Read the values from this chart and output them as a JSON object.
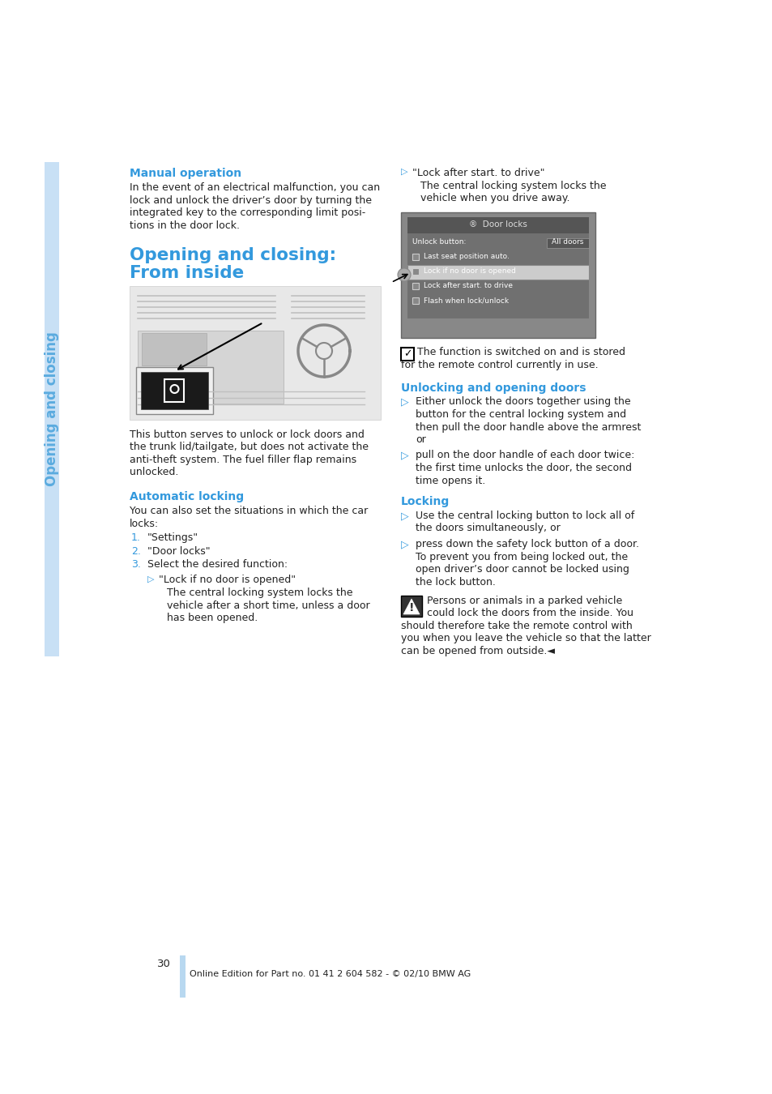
{
  "bg_color": "#ffffff",
  "sidebar_color": "#c8e0f5",
  "sidebar_text": "Opening and closing",
  "sidebar_text_color": "#5aabdf",
  "page_number": "30",
  "footer_text": "Online Edition for Part no. 01 41 2 604 582 - © 02/10 BMW AG",
  "footer_bar_color": "#b8d8f0",
  "blue_heading_color": "#3399dd",
  "black_text_color": "#222222",
  "section1_heading": "Manual operation",
  "section1_body_lines": [
    "In the event of an electrical malfunction, you can",
    "lock and unlock the driver’s door by turning the",
    "integrated key to the corresponding limit posi-",
    "tions in the door lock."
  ],
  "section2_heading1": "Opening and closing:",
  "section2_heading2": "From inside",
  "section2_body_lines": [
    "This button serves to unlock or lock doors and",
    "the trunk lid/tailgate, but does not activate the",
    "anti-theft system. The fuel filler flap remains",
    "unlocked."
  ],
  "section3_heading": "Automatic locking",
  "section3_body_lines": [
    "You can also set the situations in which the car",
    "locks:"
  ],
  "section3_list": [
    "\"Settings\"",
    "\"Door locks\"",
    "Select the desired function:"
  ],
  "sub1_bullet": "\"Lock if no door is opened\"",
  "sub1_body_lines": [
    "The central locking system locks the",
    "vehicle after a short time, unless a door",
    "has been opened."
  ],
  "sub2_bullet": "\"Lock after start. to drive\"",
  "sub2_body_lines": [
    "The central locking system locks the",
    "vehicle when you drive away."
  ],
  "note_lines": [
    "The function is switched on and is stored",
    "for the remote control currently in use."
  ],
  "section4_heading": "Unlocking and opening doors",
  "section4_bullet1_lines": [
    "Either unlock the doors together using the",
    "button for the central locking system and",
    "then pull the door handle above the armrest",
    "or"
  ],
  "section4_bullet2_lines": [
    "pull on the door handle of each door twice:",
    "the first time unlocks the door, the second",
    "time opens it."
  ],
  "section5_heading": "Locking",
  "section5_bullet1_lines": [
    "Use the central locking button to lock all of",
    "the doors simultaneously, or"
  ],
  "section5_bullet2_lines": [
    "press down the safety lock button of a door.",
    "To prevent you from being locked out, the",
    "open driver’s door cannot be locked using",
    "the lock button."
  ],
  "warning_lines": [
    "Persons or animals in a parked vehicle",
    "could lock the doors from the inside. You",
    "should therefore take the remote control with",
    "you when you leave the vehicle so that the latter",
    "can be opened from outside.◄"
  ]
}
